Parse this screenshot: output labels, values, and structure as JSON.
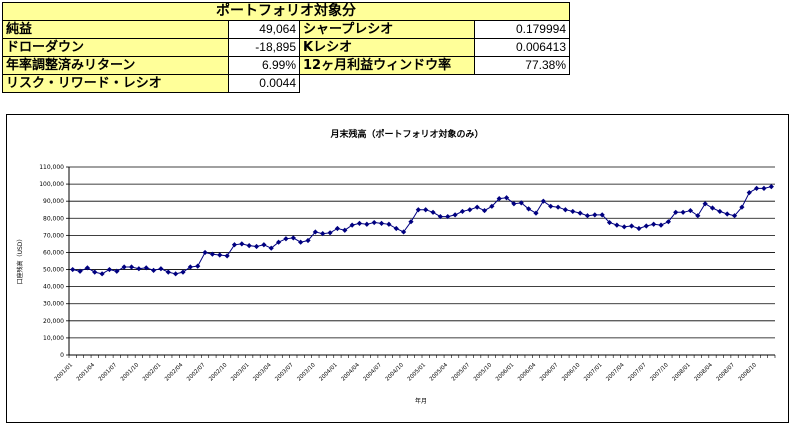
{
  "table": {
    "title": "ポートフォリオ対象分",
    "rows": [
      {
        "label1": "純益",
        "value1": "49,064",
        "label2": "シャープレシオ",
        "value2": "0.179994"
      },
      {
        "label1": "ドローダウン",
        "value1": "-18,895",
        "label2": "Kレシオ",
        "value2": "0.006413"
      },
      {
        "label1": "年率調整済みリターン",
        "value1": "6.99%",
        "label2": "12ヶ月利益ウィンドウ率",
        "value2": "77.38%"
      },
      {
        "label1": "リスク・リワード・レシオ",
        "value1": "0.0044"
      }
    ]
  },
  "colors": {
    "header_bg": "#ffff99",
    "series": "#000080"
  },
  "chart_data": {
    "type": "line",
    "title": "月末残高（ポートフォリオ対象のみ）",
    "xlabel": "年月",
    "ylabel": "口座残高（USD）",
    "ylim": [
      0,
      110000
    ],
    "yticks": [
      0,
      10000,
      20000,
      30000,
      40000,
      50000,
      60000,
      70000,
      80000,
      90000,
      100000,
      110000
    ],
    "ytick_labels": [
      "0",
      "10,000",
      "20,000",
      "30,000",
      "40,000",
      "50,000",
      "60,000",
      "70,000",
      "80,000",
      "90,000",
      "100,000",
      "110,000"
    ],
    "xtick_labels": [
      "2001/01",
      "2001/04",
      "2001/07",
      "2001/10",
      "2002/01",
      "2002/04",
      "2002/07",
      "2002/10",
      "2003/01",
      "2003/04",
      "2003/07",
      "2003/10",
      "2004/01",
      "2004/04",
      "2004/07",
      "2004/10",
      "2005/01",
      "2005/04",
      "2005/07",
      "2005/10",
      "2006/01",
      "2006/04",
      "2006/07",
      "2006/10",
      "2007/01",
      "2007/04",
      "2007/07",
      "2007/10",
      "2008/01",
      "2008/04",
      "2008/07",
      "2008/10"
    ],
    "grid": true,
    "legend": "none",
    "series": [
      {
        "values": [
          50000,
          49000,
          51000,
          48500,
          47500,
          50000,
          49000,
          51500,
          51500,
          50500,
          51000,
          49500,
          50500,
          48500,
          47500,
          48500,
          51500,
          52000,
          60000,
          59000,
          58500,
          58000,
          64500,
          65000,
          64000,
          63500,
          64500,
          62500,
          66000,
          68000,
          68500,
          66000,
          67000,
          72000,
          71000,
          71500,
          74000,
          73000,
          76000,
          77000,
          76500,
          77500,
          77000,
          76500,
          74000,
          72000,
          78000,
          85000,
          85000,
          83500,
          81000,
          81000,
          82000,
          84000,
          85000,
          86500,
          84500,
          87000,
          91500,
          92000,
          88500,
          89000,
          85500,
          83000,
          90000,
          87000,
          86500,
          85000,
          84000,
          83000,
          81500,
          82000,
          82000,
          77500,
          76000,
          75000,
          75500,
          74000,
          75500,
          76500,
          76000,
          78000,
          83500,
          83500,
          84500,
          81500,
          88500,
          86000,
          84000,
          82500,
          81500,
          86500,
          95000,
          97500,
          97500,
          98500
        ]
      }
    ]
  }
}
